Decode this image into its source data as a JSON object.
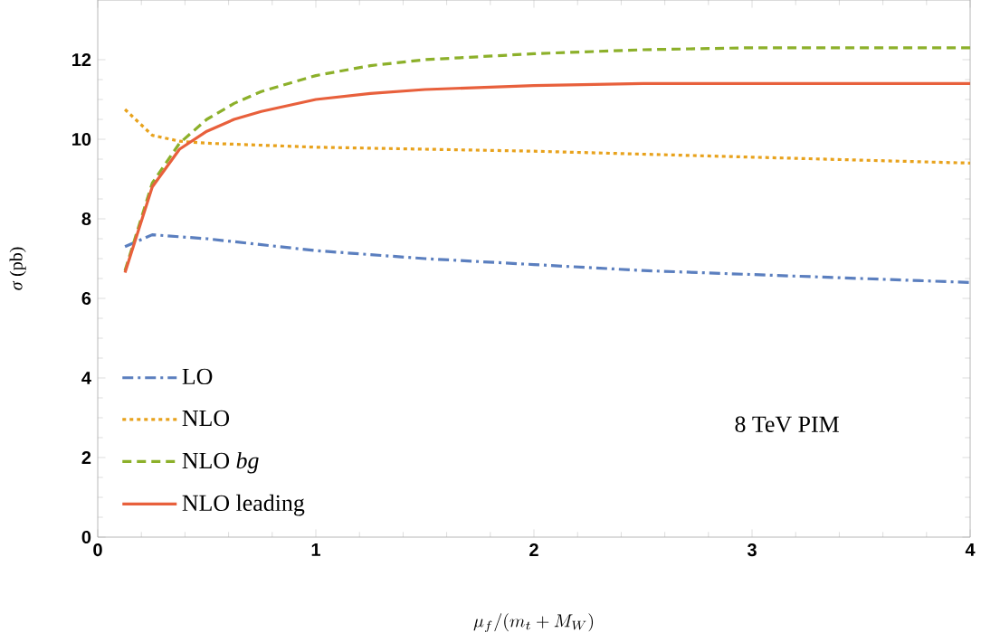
{
  "chart_data": {
    "type": "line",
    "xlabel": "\\mu_f/(m_t + M_W)",
    "ylabel": "*σ* (pb)",
    "annotations": [
      "8 TeV PIM"
    ],
    "xlim": [
      0,
      4
    ],
    "ylim": [
      0,
      13.5
    ],
    "xticks": [
      0,
      1,
      2,
      3,
      4
    ],
    "yticks": [
      0,
      2,
      4,
      6,
      8,
      10,
      12
    ],
    "grid": false,
    "legend": "bottom left",
    "marker": "none",
    "series": [
      {
        "name": "LO",
        "color": "#5b7fbf",
        "line_style": "dashdot",
        "x": [
          0.125,
          0.25,
          0.5,
          1,
          1.5,
          2,
          2.5,
          3,
          3.5,
          4
        ],
        "values": [
          7.3,
          7.6,
          7.5,
          7.2,
          7.0,
          6.85,
          6.7,
          6.6,
          6.5,
          6.4
        ]
      },
      {
        "name": "NLO",
        "color": "#e8a21c",
        "line_style": "dotted",
        "x": [
          0.125,
          0.25,
          0.375,
          0.5,
          1,
          2,
          3,
          4
        ],
        "values": [
          10.75,
          10.1,
          9.95,
          9.9,
          9.8,
          9.7,
          9.55,
          9.4
        ]
      },
      {
        "name": "NLO *bg*",
        "color": "#8cb02a",
        "line_style": "dashed",
        "x": [
          0.125,
          0.25,
          0.375,
          0.5,
          0.625,
          0.75,
          1,
          1.25,
          1.5,
          2,
          2.5,
          3,
          4
        ],
        "values": [
          6.7,
          8.9,
          9.9,
          10.5,
          10.9,
          11.2,
          11.6,
          11.85,
          12.0,
          12.15,
          12.25,
          12.3,
          12.3
        ]
      },
      {
        "name": "NLO leading",
        "color": "#e8603c",
        "line_style": "solid",
        "x": [
          0.125,
          0.25,
          0.375,
          0.5,
          0.625,
          0.75,
          1,
          1.25,
          1.5,
          2,
          2.5,
          3,
          4
        ],
        "values": [
          6.65,
          8.8,
          9.75,
          10.2,
          10.5,
          10.7,
          11.0,
          11.15,
          11.25,
          11.35,
          11.4,
          11.4,
          11.4
        ]
      }
    ]
  }
}
